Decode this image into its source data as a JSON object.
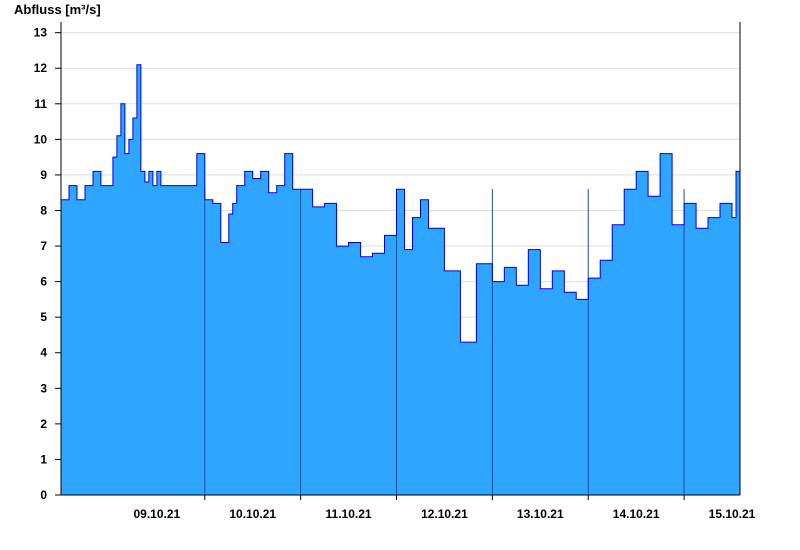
{
  "chart_data": {
    "type": "area",
    "ylabel": "Abfluss [m³/s]",
    "ylim": [
      0,
      13.3
    ],
    "yticks": [
      0,
      1,
      2,
      3,
      4,
      5,
      6,
      7,
      8,
      9,
      10,
      11,
      12,
      13
    ],
    "xlim": [
      "2021-10-08T12:00",
      "2021-10-15T14:00"
    ],
    "x_tick_labels": [
      {
        "label": "09.10.21",
        "date": "2021-10-09"
      },
      {
        "label": "10.10.21",
        "date": "2021-10-10"
      },
      {
        "label": "11.10.21",
        "date": "2021-10-11"
      },
      {
        "label": "12.10.21",
        "date": "2021-10-12"
      },
      {
        "label": "13.10.21",
        "date": "2021-10-13"
      },
      {
        "label": "14.10.21",
        "date": "2021-10-14"
      },
      {
        "label": "15.10.21",
        "date": "2021-10-15"
      }
    ],
    "grid": true,
    "colors": {
      "fill": "#2ea6ff",
      "line": "#0000dd",
      "grid": "#dddddd",
      "day_divider": "#1b4f9c"
    },
    "series": [
      {
        "x": [
          "2021-10-08T12:00",
          "2021-10-08T14:00",
          "2021-10-08T16:00",
          "2021-10-08T18:00",
          "2021-10-08T20:00",
          "2021-10-08T22:00",
          "2021-10-09T00:00",
          "2021-10-09T01:00",
          "2021-10-09T02:00",
          "2021-10-09T03:00",
          "2021-10-09T04:00",
          "2021-10-09T05:00",
          "2021-10-09T06:00",
          "2021-10-09T07:00",
          "2021-10-09T08:00",
          "2021-10-09T09:00",
          "2021-10-09T10:00",
          "2021-10-09T11:00",
          "2021-10-09T12:00",
          "2021-10-09T13:00",
          "2021-10-09T14:00",
          "2021-10-09T16:00",
          "2021-10-09T18:00",
          "2021-10-09T20:00",
          "2021-10-09T22:00",
          "2021-10-10T00:00",
          "2021-10-10T02:00",
          "2021-10-10T04:00",
          "2021-10-10T06:00",
          "2021-10-10T07:00",
          "2021-10-10T08:00",
          "2021-10-10T10:00",
          "2021-10-10T12:00",
          "2021-10-10T14:00",
          "2021-10-10T16:00",
          "2021-10-10T18:00",
          "2021-10-10T20:00",
          "2021-10-10T22:00",
          "2021-10-11T00:00",
          "2021-10-11T03:00",
          "2021-10-11T06:00",
          "2021-10-11T09:00",
          "2021-10-11T12:00",
          "2021-10-11T15:00",
          "2021-10-11T18:00",
          "2021-10-11T21:00",
          "2021-10-12T00:00",
          "2021-10-12T02:00",
          "2021-10-12T04:00",
          "2021-10-12T06:00",
          "2021-10-12T08:00",
          "2021-10-12T12:00",
          "2021-10-12T16:00",
          "2021-10-12T20:00",
          "2021-10-13T00:00",
          "2021-10-13T03:00",
          "2021-10-13T06:00",
          "2021-10-13T09:00",
          "2021-10-13T12:00",
          "2021-10-13T15:00",
          "2021-10-13T18:00",
          "2021-10-13T21:00",
          "2021-10-14T00:00",
          "2021-10-14T03:00",
          "2021-10-14T06:00",
          "2021-10-14T09:00",
          "2021-10-14T12:00",
          "2021-10-14T15:00",
          "2021-10-14T18:00",
          "2021-10-14T21:00",
          "2021-10-15T00:00",
          "2021-10-15T03:00",
          "2021-10-15T06:00",
          "2021-10-15T09:00",
          "2021-10-15T12:00",
          "2021-10-15T13:00",
          "2021-10-15T14:00"
        ],
        "values": [
          8.3,
          8.7,
          8.3,
          8.7,
          9.1,
          8.7,
          8.7,
          9.5,
          10.1,
          11.0,
          9.6,
          10.0,
          10.6,
          12.1,
          9.1,
          8.8,
          9.1,
          8.7,
          9.1,
          8.7,
          8.7,
          8.7,
          8.7,
          8.7,
          9.6,
          8.3,
          8.2,
          7.1,
          7.9,
          8.2,
          8.7,
          9.1,
          8.9,
          9.1,
          8.5,
          8.7,
          9.6,
          8.6,
          8.6,
          8.1,
          8.2,
          7.0,
          7.1,
          6.7,
          6.8,
          7.3,
          8.6,
          6.9,
          7.8,
          8.3,
          7.5,
          6.3,
          4.3,
          6.5,
          6.0,
          6.4,
          5.9,
          6.9,
          5.8,
          6.3,
          5.7,
          5.5,
          6.1,
          6.6,
          7.6,
          8.6,
          9.1,
          8.4,
          9.6,
          7.6,
          8.2,
          7.5,
          7.8,
          8.2,
          7.8,
          9.1,
          7.4
        ]
      }
    ]
  }
}
